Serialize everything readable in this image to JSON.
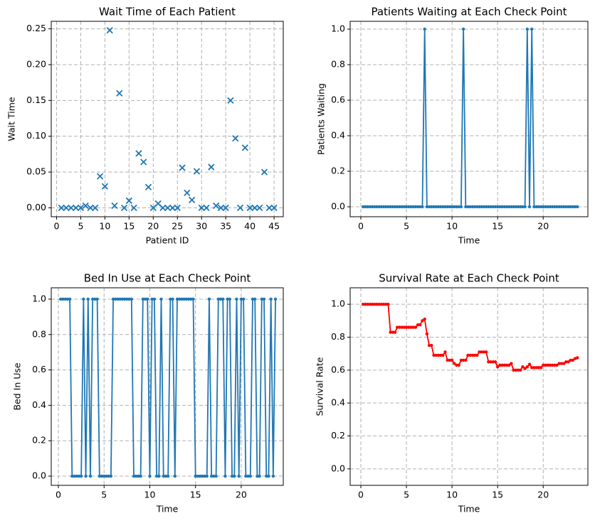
{
  "chart_data": [
    {
      "type": "scatter",
      "title": "Wait Time of Each Patient",
      "xlabel": "Patient ID",
      "ylabel": "Wait Time",
      "color": "#1f77b4",
      "grid": true,
      "x": [
        1,
        2,
        3,
        4,
        5,
        6,
        7,
        8,
        9,
        10,
        11,
        12,
        13,
        14,
        15,
        16,
        17,
        18,
        19,
        20,
        21,
        22,
        23,
        24,
        25,
        26,
        27,
        28,
        29,
        30,
        31,
        32,
        33,
        34,
        35,
        36,
        37,
        38,
        39,
        40,
        41,
        42,
        43,
        44,
        45
      ],
      "values": [
        0,
        0,
        0,
        0,
        0,
        0.003,
        0,
        0,
        0.044,
        0.03,
        0.248,
        0.003,
        0.16,
        0,
        0.01,
        0,
        0.076,
        0.064,
        0.029,
        0,
        0.006,
        0,
        0,
        0,
        0,
        0.056,
        0.021,
        0.011,
        0.051,
        0,
        0,
        0.057,
        0.003,
        0,
        0,
        0.15,
        0.097,
        0,
        0.084,
        0,
        0,
        0,
        0.05,
        0,
        0
      ],
      "xlim": [
        -1.1,
        46.9
      ],
      "xticks": [
        0,
        5,
        10,
        15,
        20,
        25,
        30,
        35,
        40,
        45
      ],
      "ylim": [
        -0.0124,
        0.2605
      ],
      "yticks": [
        {
          "value": 0,
          "label": "0.00"
        },
        {
          "value": 0.05,
          "label": "0.05"
        },
        {
          "value": 0.1,
          "label": "0.10"
        },
        {
          "value": 0.15,
          "label": "0.15"
        },
        {
          "value": 0.2,
          "label": "0.20"
        },
        {
          "value": 0.25,
          "label": "0.25"
        }
      ]
    },
    {
      "type": "line",
      "title": "Patients Waiting at Each Check Point",
      "xlabel": "Time",
      "ylabel": "Patients Waiting",
      "color": "#1f77b4",
      "grid": true,
      "x": [
        0.25,
        0.5,
        0.75,
        1,
        1.25,
        1.5,
        1.75,
        2,
        2.25,
        2.5,
        2.75,
        3,
        3.25,
        3.5,
        3.75,
        4,
        4.25,
        4.5,
        4.75,
        5,
        5.25,
        5.5,
        5.75,
        6,
        6.25,
        6.5,
        6.75,
        7,
        7.25,
        7.5,
        7.75,
        8,
        8.25,
        8.5,
        8.75,
        9,
        9.25,
        9.5,
        9.75,
        10,
        10.25,
        10.5,
        10.75,
        11,
        11.25,
        11.5,
        11.75,
        12,
        12.25,
        12.5,
        12.75,
        13,
        13.25,
        13.5,
        13.75,
        14,
        14.25,
        14.5,
        14.75,
        15,
        15.25,
        15.5,
        15.75,
        16,
        16.25,
        16.5,
        16.75,
        17,
        17.25,
        17.5,
        17.75,
        18,
        18.25,
        18.5,
        18.75,
        19,
        19.25,
        19.5,
        19.75,
        20,
        20.25,
        20.5,
        20.75,
        21,
        21.25,
        21.5,
        21.75,
        22,
        22.25,
        22.5,
        22.75,
        23,
        23.25,
        23.5,
        23.75
      ],
      "values": [
        0,
        0,
        0,
        0,
        0,
        0,
        0,
        0,
        0,
        0,
        0,
        0,
        0,
        0,
        0,
        0,
        0,
        0,
        0,
        0,
        0,
        0,
        0,
        0,
        0,
        0,
        0,
        1,
        0,
        0,
        0,
        0,
        0,
        0,
        0,
        0,
        0,
        0,
        0,
        0,
        0,
        0,
        0,
        0,
        1,
        0,
        0,
        0,
        0,
        0,
        0,
        0,
        0,
        0,
        0,
        0,
        0,
        0,
        0,
        0,
        0,
        0,
        0,
        0,
        0,
        0,
        0,
        0,
        0,
        0,
        0,
        0,
        1,
        0,
        1,
        0,
        0,
        0,
        0,
        0,
        0,
        0,
        0,
        0,
        0,
        0,
        0,
        0,
        0,
        0,
        0,
        0,
        0,
        0,
        0
      ],
      "xlim": [
        -1.17,
        24.9
      ],
      "xticks": [
        0,
        5,
        10,
        15,
        20
      ],
      "ylim": [
        -0.056,
        1.044
      ],
      "yticks": [
        {
          "value": 0,
          "label": "0.0"
        },
        {
          "value": 0.2,
          "label": "0.2"
        },
        {
          "value": 0.4,
          "label": "0.4"
        },
        {
          "value": 0.6,
          "label": "0.6"
        },
        {
          "value": 0.8,
          "label": "0.8"
        },
        {
          "value": 1,
          "label": "1.0"
        }
      ]
    },
    {
      "type": "line",
      "title": "Bed In Use at Each Check Point",
      "xlabel": "Time",
      "ylabel": "Bed In Use",
      "color": "#1f77b4",
      "grid": true,
      "x": [
        0.25,
        0.5,
        0.75,
        1,
        1.25,
        1.5,
        1.75,
        2,
        2.25,
        2.5,
        2.75,
        3,
        3.25,
        3.5,
        3.75,
        4,
        4.25,
        4.5,
        4.75,
        5,
        5.25,
        5.5,
        5.75,
        6,
        6.25,
        6.5,
        6.75,
        7,
        7.25,
        7.5,
        7.75,
        8,
        8.25,
        8.5,
        8.75,
        9,
        9.25,
        9.5,
        9.75,
        10,
        10.25,
        10.5,
        10.75,
        11,
        11.25,
        11.5,
        11.75,
        12,
        12.25,
        12.5,
        12.75,
        13,
        13.25,
        13.5,
        13.75,
        14,
        14.25,
        14.5,
        14.75,
        15,
        15.25,
        15.5,
        15.75,
        16,
        16.25,
        16.5,
        16.75,
        17,
        17.25,
        17.5,
        17.75,
        18,
        18.25,
        18.5,
        18.75,
        19,
        19.25,
        19.5,
        19.75,
        20,
        20.25,
        20.5,
        20.75,
        21,
        21.25,
        21.5,
        21.75,
        22,
        22.25,
        22.5,
        22.75,
        23,
        23.25,
        23.5,
        23.75
      ],
      "values": [
        1,
        1,
        1,
        1,
        1,
        0,
        0,
        0,
        0,
        0,
        1,
        0,
        1,
        0,
        1,
        1,
        1,
        0,
        0,
        0,
        0,
        0,
        0,
        1,
        1,
        1,
        1,
        1,
        1,
        1,
        1,
        1,
        0,
        0,
        0,
        0,
        1,
        1,
        1,
        0,
        1,
        1,
        0,
        0,
        1,
        0,
        0,
        0,
        1,
        1,
        0,
        1,
        1,
        1,
        1,
        1,
        1,
        1,
        1,
        0,
        0,
        0,
        0,
        0,
        0,
        1,
        0,
        0,
        0,
        1,
        1,
        1,
        0,
        1,
        1,
        0,
        0,
        1,
        0,
        1,
        1,
        0,
        0,
        0,
        1,
        1,
        0,
        0,
        1,
        1,
        0,
        0,
        1,
        0,
        1
      ],
      "xlim": [
        -0.78,
        24.6
      ],
      "xticks": [
        0,
        5,
        10,
        15,
        20
      ],
      "ylim": [
        -0.052,
        1.064
      ],
      "yticks": [
        {
          "value": 0,
          "label": "0.0"
        },
        {
          "value": 0.2,
          "label": "0.2"
        },
        {
          "value": 0.4,
          "label": "0.4"
        },
        {
          "value": 0.6,
          "label": "0.6"
        },
        {
          "value": 0.8,
          "label": "0.8"
        },
        {
          "value": 1,
          "label": "1.0"
        }
      ]
    },
    {
      "type": "line",
      "title": "Survival Rate at Each Check Point",
      "xlabel": "Time",
      "ylabel": "Survival Rate",
      "color": "#ff0000",
      "grid": true,
      "x": [
        0.25,
        0.5,
        0.75,
        1,
        1.25,
        1.5,
        1.75,
        2,
        2.25,
        2.5,
        2.75,
        3,
        3.25,
        3.5,
        3.75,
        4,
        4.25,
        4.5,
        4.75,
        5,
        5.25,
        5.5,
        5.75,
        6,
        6.25,
        6.5,
        6.75,
        7,
        7.25,
        7.5,
        7.75,
        8,
        8.25,
        8.5,
        8.75,
        9,
        9.25,
        9.5,
        9.75,
        10,
        10.25,
        10.5,
        10.75,
        11,
        11.25,
        11.5,
        11.75,
        12,
        12.25,
        12.5,
        12.75,
        13,
        13.25,
        13.5,
        13.75,
        14,
        14.25,
        14.5,
        14.75,
        15,
        15.25,
        15.5,
        15.75,
        16,
        16.25,
        16.5,
        16.75,
        17,
        17.25,
        17.5,
        17.75,
        18,
        18.25,
        18.5,
        18.75,
        19,
        19.25,
        19.5,
        19.75,
        20,
        20.25,
        20.5,
        20.75,
        21,
        21.25,
        21.5,
        21.75,
        22,
        22.25,
        22.5,
        22.75,
        23,
        23.25,
        23.5,
        23.75
      ],
      "values": [
        1,
        1,
        1,
        1,
        1,
        1,
        1,
        1,
        1,
        1,
        1,
        1,
        0.83,
        0.83,
        0.83,
        0.86,
        0.86,
        0.86,
        0.86,
        0.86,
        0.86,
        0.86,
        0.86,
        0.86,
        0.875,
        0.875,
        0.9,
        0.91,
        0.82,
        0.75,
        0.75,
        0.69,
        0.69,
        0.69,
        0.69,
        0.69,
        0.71,
        0.66,
        0.66,
        0.66,
        0.64,
        0.63,
        0.63,
        0.66,
        0.66,
        0.66,
        0.69,
        0.69,
        0.69,
        0.69,
        0.69,
        0.71,
        0.71,
        0.71,
        0.71,
        0.65,
        0.65,
        0.65,
        0.65,
        0.62,
        0.63,
        0.63,
        0.63,
        0.63,
        0.63,
        0.64,
        0.6,
        0.6,
        0.6,
        0.6,
        0.62,
        0.61,
        0.62,
        0.635,
        0.615,
        0.615,
        0.615,
        0.615,
        0.615,
        0.63,
        0.63,
        0.63,
        0.63,
        0.63,
        0.63,
        0.63,
        0.64,
        0.64,
        0.64,
        0.65,
        0.65,
        0.66,
        0.66,
        0.67,
        0.675
      ],
      "xlim": [
        -1.17,
        24.9
      ],
      "xticks": [
        0,
        5,
        10,
        15,
        20
      ],
      "ylim": [
        -0.1,
        1.1
      ],
      "yticks": [
        {
          "value": 0,
          "label": "0.0"
        },
        {
          "value": 0.2,
          "label": "0.2"
        },
        {
          "value": 0.4,
          "label": "0.4"
        },
        {
          "value": 0.6,
          "label": "0.6"
        },
        {
          "value": 0.8,
          "label": "0.8"
        },
        {
          "value": 1,
          "label": "1.0"
        }
      ]
    }
  ]
}
